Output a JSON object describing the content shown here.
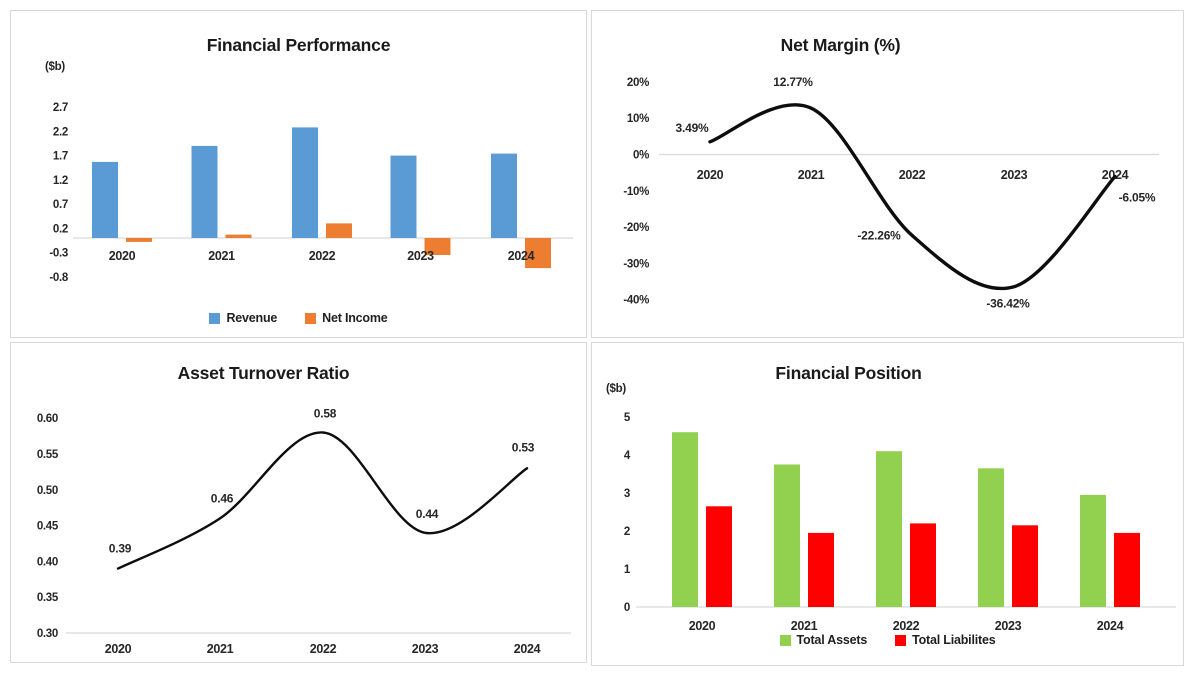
{
  "chart_data": [
    {
      "id": "financial-performance",
      "type": "bar",
      "title": "Financial Performance",
      "unit_label": "($b)",
      "categories": [
        "2020",
        "2021",
        "2022",
        "2023",
        "2024"
      ],
      "series": [
        {
          "name": "Revenue",
          "color": "#5B9BD5",
          "values": [
            1.57,
            1.9,
            2.28,
            1.7,
            1.74
          ]
        },
        {
          "name": "Net Income",
          "color": "#ED7D31",
          "values": [
            -0.08,
            0.07,
            0.3,
            -0.35,
            -0.62
          ]
        }
      ],
      "y_ticks": [
        {
          "v": 2.7,
          "label": "2.7"
        },
        {
          "v": 2.2,
          "label": "2.2"
        },
        {
          "v": 1.7,
          "label": "1.7"
        },
        {
          "v": 1.2,
          "label": "1.2"
        },
        {
          "v": 0.7,
          "label": "0.7"
        },
        {
          "v": 0.2,
          "label": "0.2"
        },
        {
          "v": -0.3,
          "label": "-0.3"
        },
        {
          "v": -0.8,
          "label": "-0.8"
        }
      ],
      "ylim": [
        -0.8,
        2.7
      ],
      "grid": false,
      "legend_position": "bottom"
    },
    {
      "id": "net-margin",
      "type": "line",
      "title": "Net Margin (%)",
      "categories": [
        "2020",
        "2021",
        "2022",
        "2023",
        "2024"
      ],
      "values": [
        3.49,
        12.77,
        -22.26,
        -36.42,
        -6.05
      ],
      "point_labels": [
        "3.49%",
        "12.77%",
        "-22.26%",
        "-36.42%",
        "-6.05%"
      ],
      "line_color": "#0d0d0d",
      "label_colors": {
        "positive": "#30C030",
        "negative": "#FF0000"
      },
      "y_ticks": [
        {
          "v": 20,
          "label": "20%"
        },
        {
          "v": 10,
          "label": "10%"
        },
        {
          "v": 0,
          "label": "0%"
        },
        {
          "v": -10,
          "label": "-10%"
        },
        {
          "v": -20,
          "label": "-20%"
        },
        {
          "v": -30,
          "label": "-30%"
        },
        {
          "v": -40,
          "label": "-40%"
        }
      ],
      "ylim": [
        -40,
        20
      ],
      "grid": false,
      "smooth": true
    },
    {
      "id": "asset-turnover-ratio",
      "type": "line",
      "title": "Asset Turnover Ratio",
      "categories": [
        "2020",
        "2021",
        "2022",
        "2023",
        "2024"
      ],
      "values": [
        0.39,
        0.46,
        0.58,
        0.44,
        0.53
      ],
      "point_labels": [
        "0.39",
        "0.46",
        "0.58",
        "0.44",
        "0.53"
      ],
      "line_color": "#0d0d0d",
      "label_colors": {
        "positive": "#30C030",
        "negative": "#30C030"
      },
      "y_ticks": [
        {
          "v": 0.6,
          "label": "0.60"
        },
        {
          "v": 0.55,
          "label": "0.55"
        },
        {
          "v": 0.5,
          "label": "0.50"
        },
        {
          "v": 0.45,
          "label": "0.45"
        },
        {
          "v": 0.4,
          "label": "0.40"
        },
        {
          "v": 0.35,
          "label": "0.35"
        },
        {
          "v": 0.3,
          "label": "0.30"
        }
      ],
      "ylim": [
        0.3,
        0.625
      ],
      "grid": false,
      "smooth": true
    },
    {
      "id": "financial-position",
      "type": "bar",
      "title": "Financial Position",
      "unit_label": "($b)",
      "categories": [
        "2020",
        "2021",
        "2022",
        "2023",
        "2024"
      ],
      "series": [
        {
          "name": "Total Assets",
          "color": "#92D050",
          "values": [
            4.6,
            3.75,
            4.1,
            3.65,
            2.95
          ]
        },
        {
          "name": "Total Liabilites",
          "color": "#FF0000",
          "values": [
            2.65,
            1.95,
            2.2,
            2.15,
            1.95
          ]
        }
      ],
      "y_ticks": [
        {
          "v": 5,
          "label": "5"
        },
        {
          "v": 4,
          "label": "4"
        },
        {
          "v": 3,
          "label": "3"
        },
        {
          "v": 2,
          "label": "2"
        },
        {
          "v": 1,
          "label": "1"
        },
        {
          "v": 0,
          "label": "0"
        }
      ],
      "ylim": [
        0,
        5
      ],
      "grid": false,
      "legend_position": "bottom"
    }
  ]
}
